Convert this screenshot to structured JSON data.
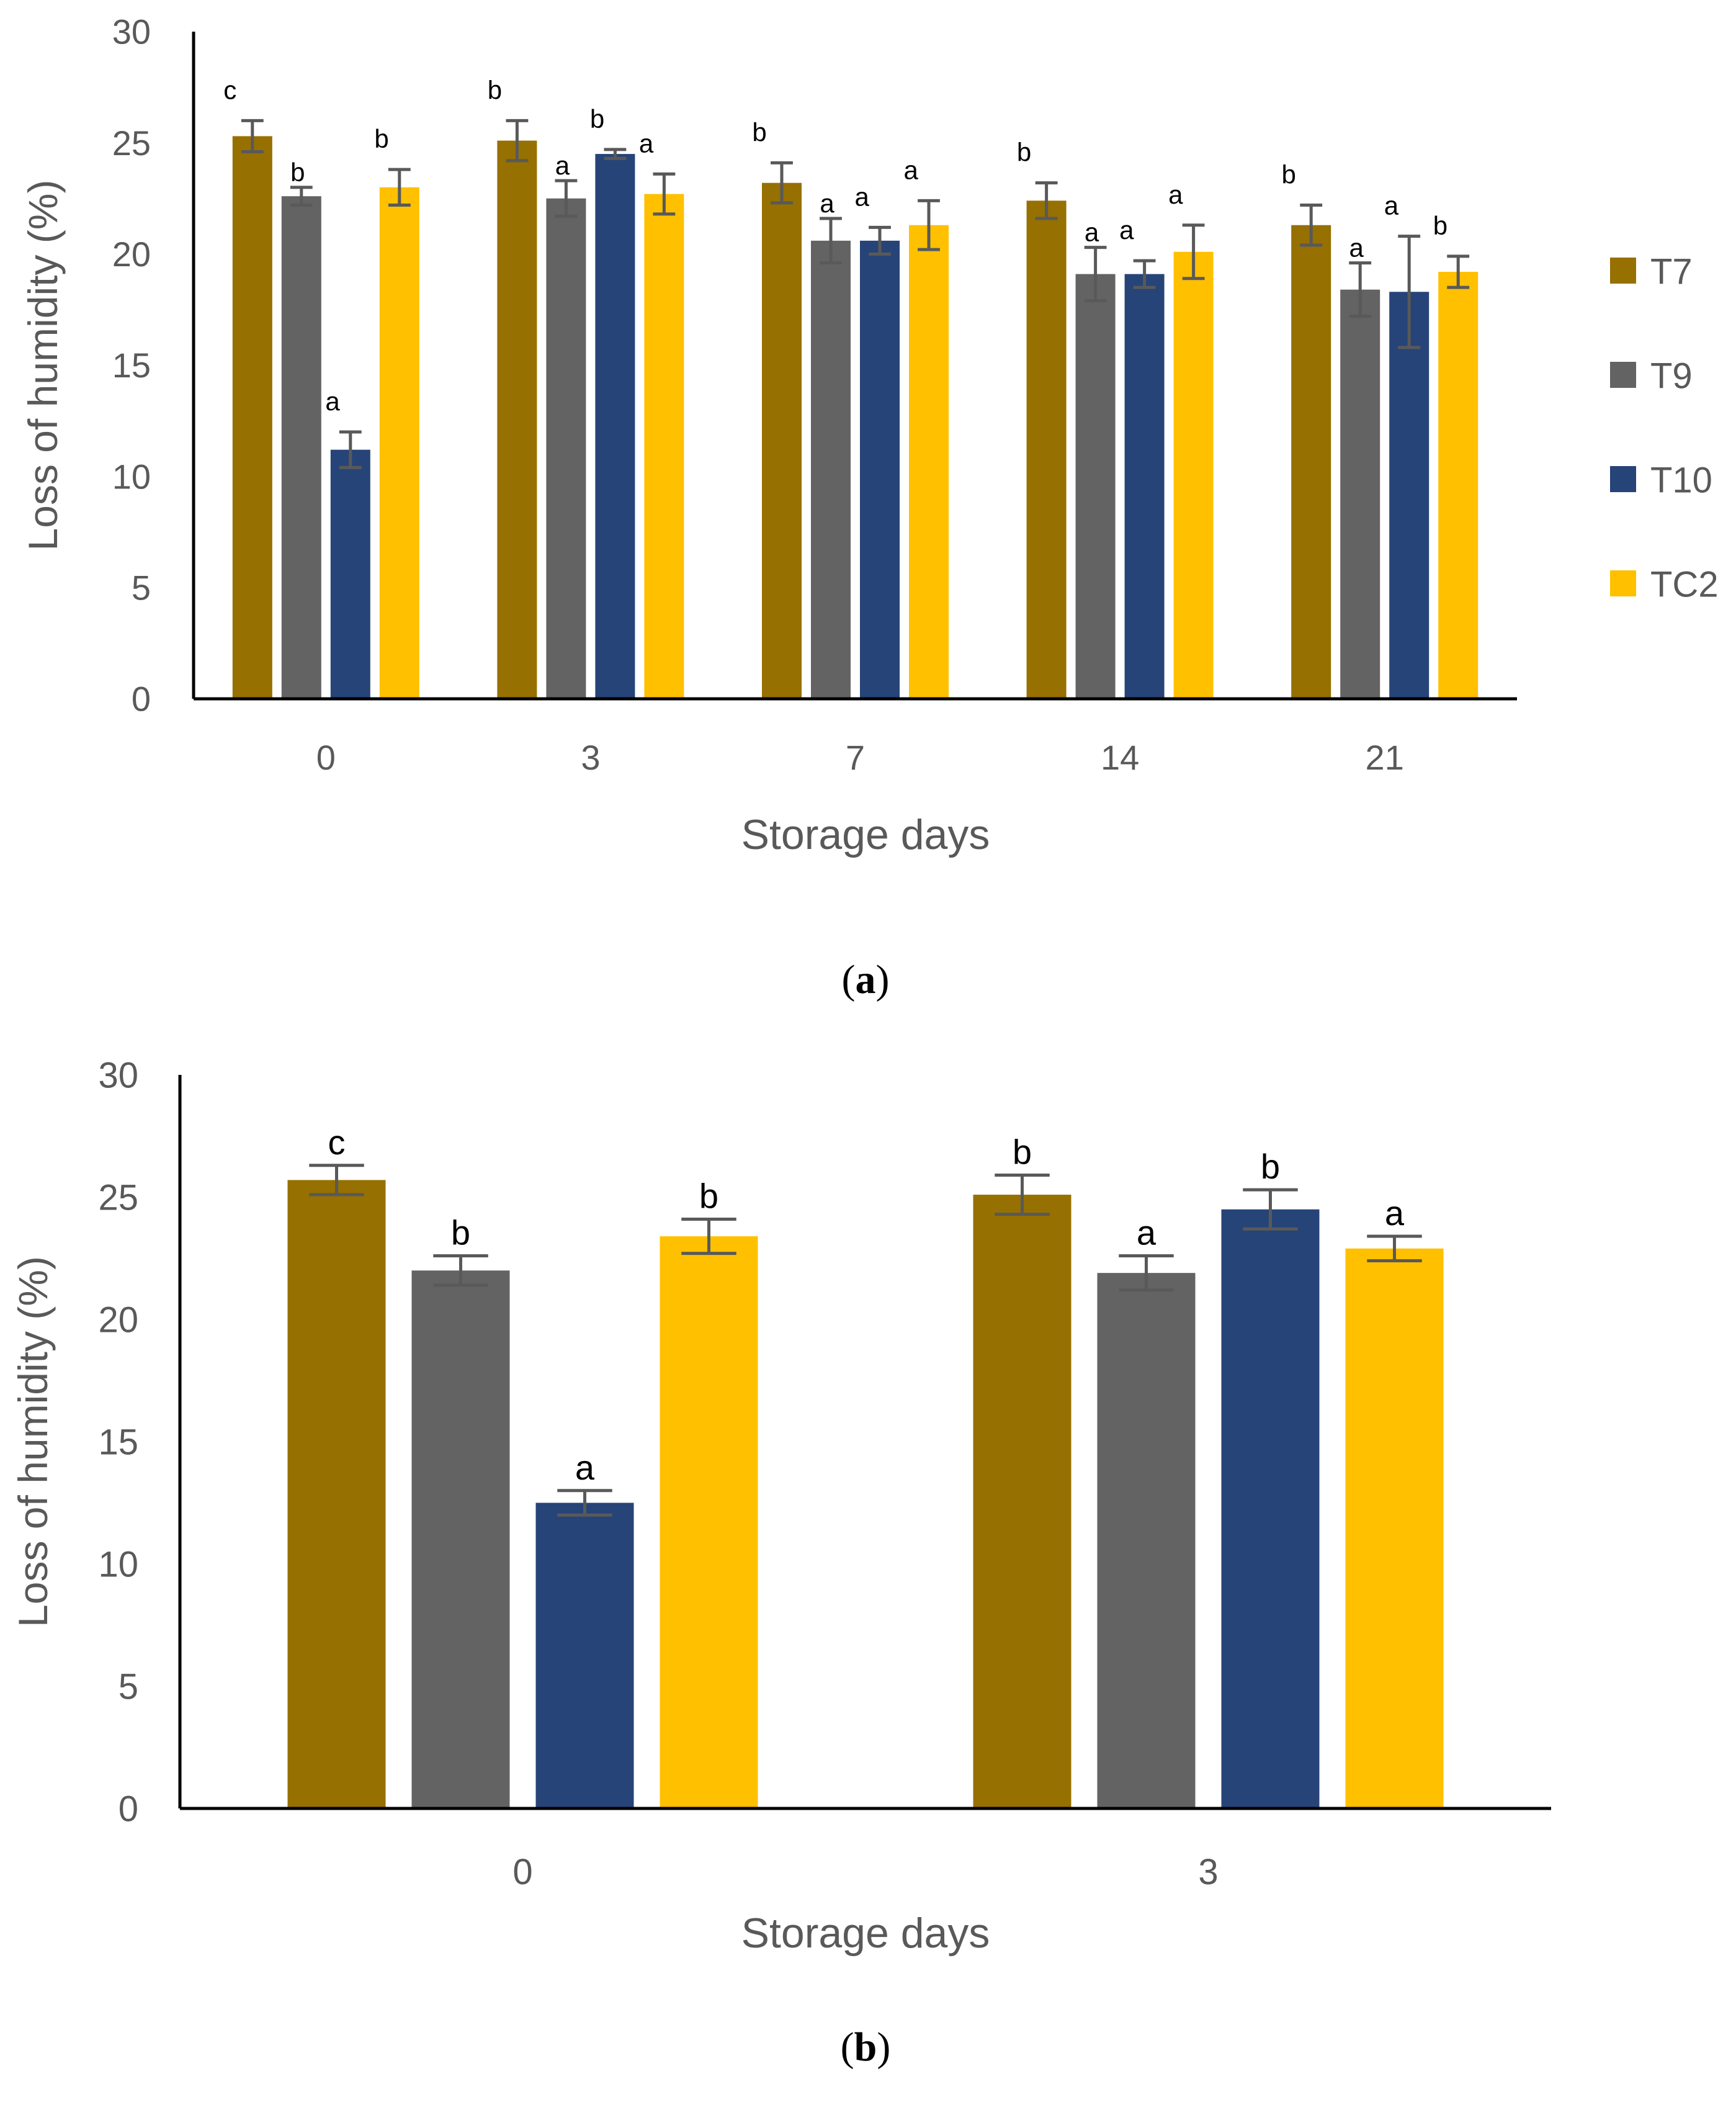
{
  "chart_data": [
    {
      "type": "bar",
      "panel": "a",
      "caption_open": "(",
      "caption_letter": "a",
      "caption_close": ")",
      "xlabel": "Storage days",
      "ylabel": "Loss of humidity (%)",
      "ylim": [
        0,
        30
      ],
      "yticks": [
        0,
        5,
        10,
        15,
        20,
        25,
        30
      ],
      "categories": [
        "0",
        "3",
        "7",
        "14",
        "21"
      ],
      "legend_position": "right",
      "series": [
        {
          "name": "T7",
          "color": "#967000",
          "values": [
            25.3,
            25.1,
            23.2,
            22.4,
            21.3
          ],
          "errors": [
            0.7,
            0.9,
            0.9,
            0.8,
            0.9
          ],
          "labels": [
            "c",
            "b",
            "b",
            "b",
            "b"
          ]
        },
        {
          "name": "T9",
          "color": "#636363",
          "values": [
            22.6,
            22.5,
            20.6,
            19.1,
            18.4
          ],
          "errors": [
            0.4,
            0.8,
            1.0,
            1.2,
            1.2
          ],
          "labels": [
            "b",
            "a",
            "a",
            "a",
            "a"
          ]
        },
        {
          "name": "T10",
          "color": "#264478",
          "values": [
            11.2,
            24.5,
            20.6,
            19.1,
            18.3
          ],
          "errors": [
            0.8,
            0.2,
            0.6,
            0.6,
            2.5
          ],
          "labels": [
            "a",
            "b",
            "a",
            "a",
            "a"
          ]
        },
        {
          "name": "TC2",
          "color": "#FFC000",
          "values": [
            23.0,
            22.7,
            21.3,
            20.1,
            19.2
          ],
          "errors": [
            0.8,
            0.9,
            1.1,
            1.2,
            0.7
          ],
          "labels": [
            "b",
            "a",
            "a",
            "a",
            "b"
          ]
        }
      ]
    },
    {
      "type": "bar",
      "panel": "b",
      "caption_open": "(",
      "caption_letter": "b",
      "caption_close": ")",
      "xlabel": "Storage days",
      "ylabel": "Loss of humidity (%)",
      "ylim": [
        0,
        30
      ],
      "yticks": [
        0,
        5,
        10,
        15,
        20,
        25,
        30
      ],
      "categories": [
        "0",
        "3"
      ],
      "series": [
        {
          "name": "T7",
          "color": "#967000",
          "values": [
            25.7,
            25.1
          ],
          "errors": [
            0.6,
            0.8
          ],
          "labels": [
            "c",
            "b"
          ]
        },
        {
          "name": "T9",
          "color": "#636363",
          "values": [
            22.0,
            21.9
          ],
          "errors": [
            0.6,
            0.7
          ],
          "labels": [
            "b",
            "a"
          ]
        },
        {
          "name": "T10",
          "color": "#264478",
          "values": [
            12.5,
            24.5
          ],
          "errors": [
            0.5,
            0.8
          ],
          "labels": [
            "a",
            "b"
          ]
        },
        {
          "name": "TC2",
          "color": "#FFC000",
          "values": [
            23.4,
            22.9
          ],
          "errors": [
            0.7,
            0.5
          ],
          "labels": [
            "b",
            "a"
          ]
        }
      ]
    }
  ]
}
